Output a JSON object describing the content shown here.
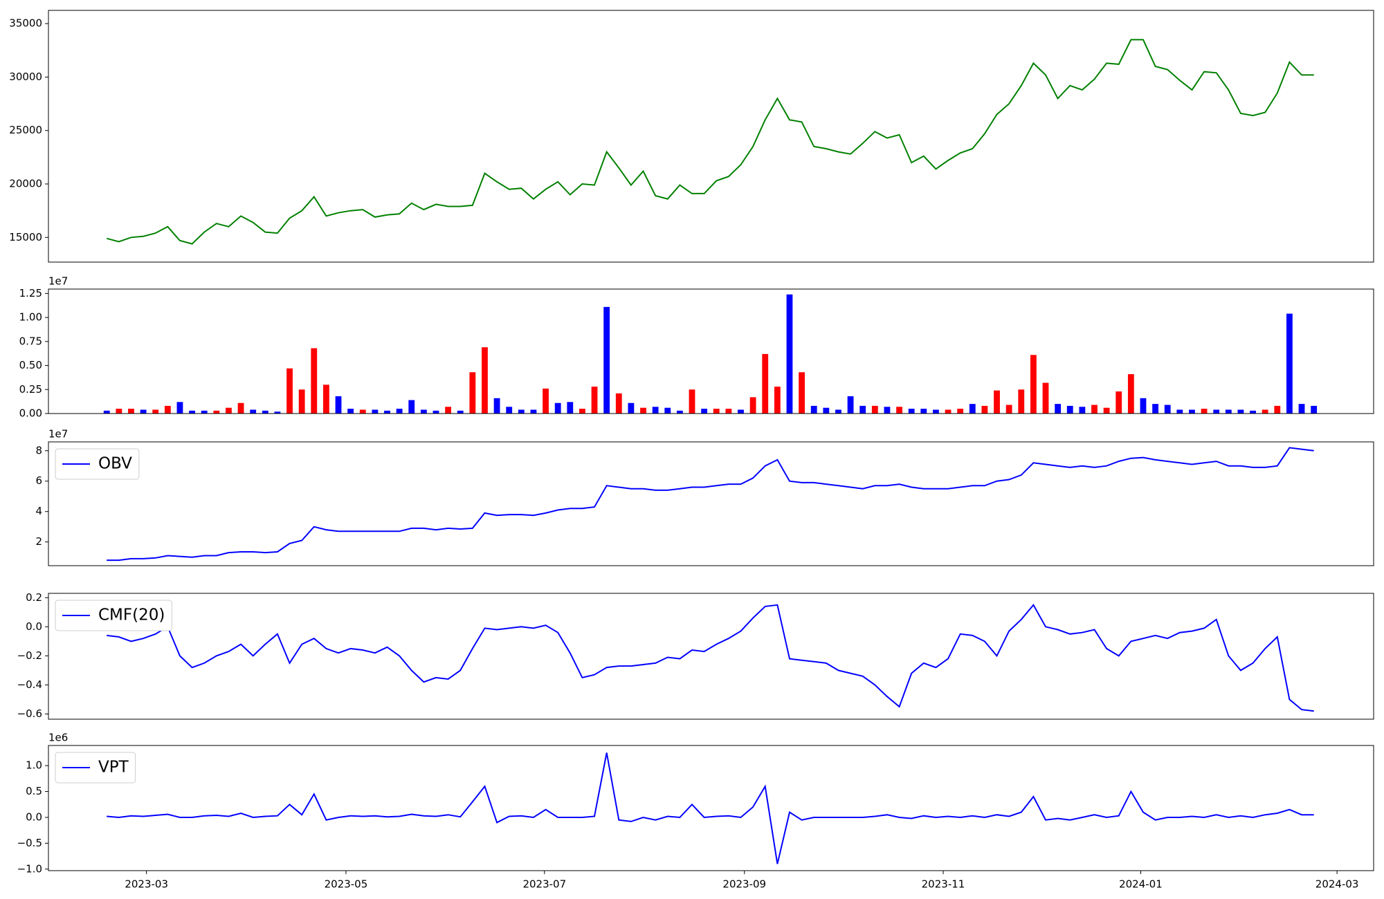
{
  "chart_data": [
    {
      "type": "line",
      "xlim": [
        -4.78,
        103.9
      ],
      "ylim": [
        12690,
        36240
      ],
      "yticks": [
        15000,
        20000,
        25000,
        30000,
        35000
      ],
      "series": [
        {
          "color": "green",
          "values": [
            14900,
            14600,
            15000,
            15100,
            15400,
            16000,
            14700,
            14400,
            15500,
            16300,
            16000,
            17000,
            16400,
            15500,
            15400,
            16800,
            17500,
            18800,
            17000,
            17300,
            17500,
            17600,
            16900,
            17100,
            17200,
            18200,
            17600,
            18100,
            17900,
            17900,
            18000,
            21000,
            20200,
            19500,
            19600,
            18600,
            19500,
            20200,
            19000,
            20000,
            19900,
            23000,
            21500,
            19900,
            21200,
            18900,
            18600,
            19900,
            19100,
            19100,
            20300,
            20700,
            21800,
            23500,
            26000,
            28000,
            26000,
            25800,
            23500,
            23300,
            23000,
            22800,
            23800,
            24900,
            24300,
            24600,
            22000,
            22600,
            21400,
            22200,
            22900,
            23300,
            24700,
            26500,
            27500,
            29200,
            31300,
            30200,
            28000,
            29200,
            28800,
            29800,
            31300,
            31200,
            33500,
            33500,
            31000,
            30700,
            29700,
            28800,
            30500,
            30400,
            28800,
            26600,
            26400,
            26700,
            28500,
            31400,
            30200,
            30200
          ]
        }
      ]
    },
    {
      "type": "bar",
      "xlim": [
        -4.78,
        103.9
      ],
      "ylim": [
        0,
        1.296
      ],
      "offset_label": "1e7",
      "yticks": [
        {
          "value": 0,
          "label": "0.00"
        },
        {
          "value": 0.25,
          "label": "0.25"
        },
        {
          "value": 0.5,
          "label": "0.50"
        },
        {
          "value": 0.75,
          "label": "0.75"
        },
        {
          "value": 1,
          "label": "1.00"
        },
        {
          "value": 1.25,
          "label": "1.25"
        }
      ],
      "series": [
        {
          "values": [
            0.03,
            0.05,
            0.05,
            0.04,
            0.04,
            0.08,
            0.12,
            0.03,
            0.03,
            0.03,
            0.06,
            0.11,
            0.04,
            0.03,
            0.02,
            0.47,
            0.25,
            0.68,
            0.3,
            0.18,
            0.05,
            0.04,
            0.04,
            0.03,
            0.05,
            0.14,
            0.04,
            0.03,
            0.07,
            0.03,
            0.43,
            0.69,
            0.16,
            0.07,
            0.04,
            0.04,
            0.26,
            0.11,
            0.12,
            0.05,
            0.28,
            1.11,
            0.21,
            0.11,
            0.06,
            0.07,
            0.06,
            0.03,
            0.25,
            0.05,
            0.05,
            0.05,
            0.04,
            0.17,
            0.62,
            0.28,
            1.24,
            0.43,
            0.08,
            0.06,
            0.04,
            0.18,
            0.08,
            0.08,
            0.07,
            0.07,
            0.05,
            0.05,
            0.04,
            0.04,
            0.05,
            0.1,
            0.08,
            0.24,
            0.09,
            0.25,
            0.61,
            0.32,
            0.1,
            0.08,
            0.07,
            0.09,
            0.06,
            0.23,
            0.41,
            0.16,
            0.1,
            0.09,
            0.04,
            0.04,
            0.05,
            0.04,
            0.04,
            0.04,
            0.03,
            0.04,
            0.08,
            1.04,
            0.1,
            0.08
          ],
          "colors": [
            "blue",
            "red",
            "red",
            "blue",
            "red",
            "red",
            "blue",
            "blue",
            "blue",
            "red",
            "red",
            "red",
            "blue",
            "blue",
            "blue",
            "red",
            "red",
            "red",
            "red",
            "blue",
            "blue",
            "red",
            "blue",
            "blue",
            "blue",
            "blue",
            "blue",
            "blue",
            "red",
            "blue",
            "red",
            "red",
            "blue",
            "blue",
            "blue",
            "blue",
            "red",
            "blue",
            "blue",
            "red",
            "red",
            "blue",
            "red",
            "blue",
            "red",
            "blue",
            "blue",
            "blue",
            "red",
            "blue",
            "red",
            "red",
            "blue",
            "red",
            "red",
            "red",
            "blue",
            "red",
            "blue",
            "blue",
            "blue",
            "blue",
            "blue",
            "red",
            "blue",
            "red",
            "blue",
            "blue",
            "blue",
            "red",
            "red",
            "blue",
            "red",
            "red",
            "red",
            "red",
            "red",
            "red",
            "blue",
            "blue",
            "blue",
            "red",
            "red",
            "red",
            "red",
            "blue",
            "blue",
            "blue",
            "blue",
            "blue",
            "red",
            "blue",
            "blue",
            "blue",
            "blue",
            "red",
            "red",
            "blue",
            "blue",
            "blue"
          ]
        }
      ]
    },
    {
      "type": "line",
      "xlim": [
        -4.78,
        103.9
      ],
      "ylim": [
        0.44,
        8.58
      ],
      "offset_label": "1e7",
      "yticks": [
        2,
        4,
        6,
        8
      ],
      "legend": "upper left",
      "series": [
        {
          "name": "OBV",
          "color": "blue",
          "values": [
            0.8,
            0.8,
            0.9,
            0.9,
            0.95,
            1.1,
            1.05,
            1.0,
            1.1,
            1.1,
            1.3,
            1.35,
            1.35,
            1.3,
            1.35,
            1.9,
            2.1,
            3.0,
            2.8,
            2.7,
            2.7,
            2.7,
            2.7,
            2.7,
            2.7,
            2.9,
            2.9,
            2.8,
            2.9,
            2.85,
            2.9,
            3.9,
            3.75,
            3.8,
            3.8,
            3.75,
            3.9,
            4.1,
            4.2,
            4.2,
            4.3,
            5.7,
            5.6,
            5.5,
            5.5,
            5.4,
            5.4,
            5.5,
            5.6,
            5.6,
            5.7,
            5.8,
            5.8,
            6.2,
            7.0,
            7.4,
            6.0,
            5.9,
            5.9,
            5.8,
            5.7,
            5.6,
            5.5,
            5.7,
            5.7,
            5.8,
            5.6,
            5.5,
            5.5,
            5.5,
            5.6,
            5.7,
            5.7,
            6.0,
            6.1,
            6.4,
            7.2,
            7.1,
            7.0,
            6.9,
            7.0,
            6.9,
            7.0,
            7.3,
            7.5,
            7.55,
            7.4,
            7.3,
            7.2,
            7.1,
            7.2,
            7.3,
            7.0,
            7.0,
            6.9,
            6.9,
            7.0,
            8.2,
            8.1,
            8.0
          ]
        }
      ]
    },
    {
      "type": "line",
      "xlim": [
        -4.78,
        103.9
      ],
      "ylim": [
        -0.636,
        0.23
      ],
      "legend": "upper left",
      "yticks": [
        {
          "value": -0.6,
          "label": "−0.6"
        },
        {
          "value": -0.4,
          "label": "−0.4"
        },
        {
          "value": -0.2,
          "label": "−0.2"
        },
        {
          "value": 0,
          "label": "0.0"
        },
        {
          "value": 0.2,
          "label": "0.2"
        }
      ],
      "series": [
        {
          "name": "CMF(20)",
          "color": "blue",
          "values": [
            -0.06,
            -0.07,
            -0.1,
            -0.08,
            -0.05,
            0.0,
            -0.2,
            -0.28,
            -0.25,
            -0.2,
            -0.17,
            -0.12,
            -0.2,
            -0.12,
            -0.05,
            -0.25,
            -0.12,
            -0.08,
            -0.15,
            -0.18,
            -0.15,
            -0.16,
            -0.18,
            -0.14,
            -0.2,
            -0.3,
            -0.38,
            -0.35,
            -0.36,
            -0.3,
            -0.15,
            -0.01,
            -0.02,
            -0.01,
            0.0,
            -0.01,
            0.01,
            -0.04,
            -0.18,
            -0.35,
            -0.33,
            -0.28,
            -0.27,
            -0.27,
            -0.26,
            -0.25,
            -0.21,
            -0.22,
            -0.16,
            -0.17,
            -0.12,
            -0.08,
            -0.03,
            0.06,
            0.14,
            0.15,
            -0.22,
            -0.23,
            -0.24,
            -0.25,
            -0.3,
            -0.32,
            -0.34,
            -0.4,
            -0.48,
            -0.55,
            -0.32,
            -0.25,
            -0.28,
            -0.22,
            -0.05,
            -0.06,
            -0.1,
            -0.2,
            -0.03,
            0.05,
            0.15,
            0.0,
            -0.02,
            -0.05,
            -0.04,
            -0.02,
            -0.15,
            -0.2,
            -0.1,
            -0.08,
            -0.06,
            -0.08,
            -0.04,
            -0.03,
            -0.01,
            0.05,
            -0.2,
            -0.3,
            -0.25,
            -0.15,
            -0.07,
            -0.5,
            -0.57,
            -0.58
          ]
        }
      ]
    },
    {
      "type": "line",
      "xlim": [
        -4.78,
        103.9
      ],
      "ylim": [
        -1.03,
        1.39
      ],
      "offset_label": "1e6",
      "legend": "upper left",
      "yticks": [
        {
          "value": -1,
          "label": "−1.0"
        },
        {
          "value": -0.5,
          "label": "−0.5"
        },
        {
          "value": 0,
          "label": "0.0"
        },
        {
          "value": 0.5,
          "label": "0.5"
        },
        {
          "value": 1,
          "label": "1.0"
        }
      ],
      "xticks": [
        {
          "value": 3.26,
          "label": "2023-03"
        },
        {
          "value": 19.62,
          "label": "2023-05"
        },
        {
          "value": 35.9,
          "label": "2023-07"
        },
        {
          "value": 52.3,
          "label": "2023-09"
        },
        {
          "value": 68.6,
          "label": "2023-11"
        },
        {
          "value": 84.8,
          "label": "2024-01"
        },
        {
          "value": 100.9,
          "label": "2024-03"
        }
      ],
      "series": [
        {
          "name": "VPT",
          "color": "blue",
          "values": [
            0.02,
            0.0,
            0.03,
            0.02,
            0.04,
            0.06,
            0.0,
            0.0,
            0.03,
            0.04,
            0.02,
            0.08,
            0.0,
            0.02,
            0.03,
            0.25,
            0.05,
            0.45,
            -0.05,
            0.0,
            0.03,
            0.02,
            0.03,
            0.01,
            0.02,
            0.06,
            0.03,
            0.02,
            0.05,
            0.01,
            0.3,
            0.6,
            -0.1,
            0.02,
            0.03,
            0.0,
            0.15,
            0.0,
            0.0,
            0.0,
            0.02,
            1.25,
            -0.05,
            -0.08,
            0.0,
            -0.05,
            0.02,
            0.0,
            0.25,
            0.0,
            0.02,
            0.03,
            0.0,
            0.2,
            0.6,
            -0.9,
            0.1,
            -0.05,
            0.0,
            0.0,
            0.0,
            0.0,
            0.0,
            0.02,
            0.05,
            0.0,
            -0.02,
            0.03,
            0.0,
            0.02,
            0.0,
            0.03,
            0.0,
            0.05,
            0.02,
            0.1,
            0.4,
            -0.05,
            -0.02,
            -0.05,
            0.0,
            0.05,
            0.0,
            0.03,
            0.5,
            0.1,
            -0.05,
            0.0,
            0.0,
            0.02,
            0.0,
            0.05,
            0.0,
            0.03,
            0.0,
            0.05,
            0.08,
            0.15,
            0.05,
            0.05
          ]
        }
      ]
    }
  ]
}
